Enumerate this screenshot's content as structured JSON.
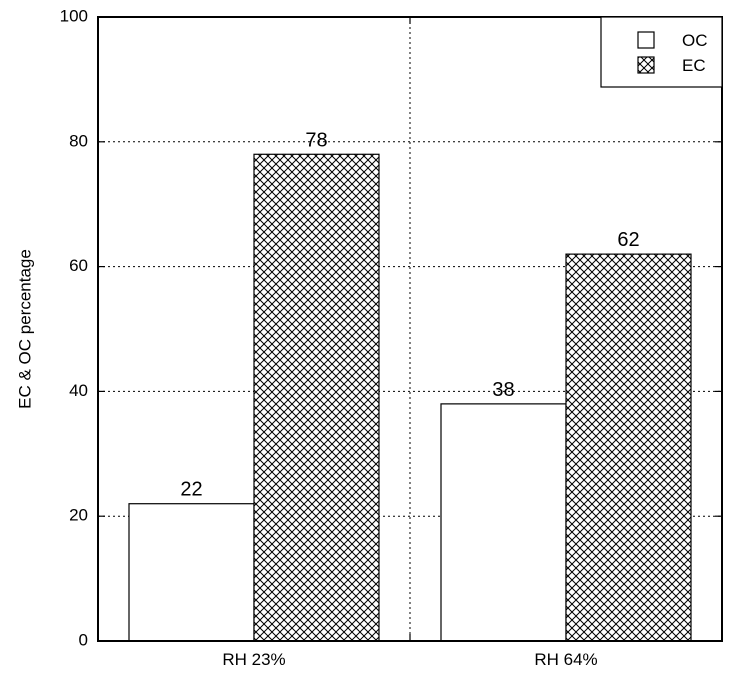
{
  "chart_data": {
    "type": "bar",
    "categories": [
      "RH 23%",
      "RH 64%"
    ],
    "series": [
      {
        "name": "OC",
        "values": [
          22,
          38
        ],
        "pattern": "empty",
        "color": "#ffffff"
      },
      {
        "name": "EC",
        "values": [
          78,
          62
        ],
        "pattern": "crosshatch",
        "color": "#000000"
      }
    ],
    "ylabel": "EC & OC percentage",
    "xlabel": "",
    "ylim": [
      0,
      100
    ],
    "yticks": [
      0,
      20,
      40,
      60,
      80,
      100
    ],
    "grid": true,
    "grid_style": "dotted",
    "legend_position": "top-right",
    "data_labels": true
  }
}
